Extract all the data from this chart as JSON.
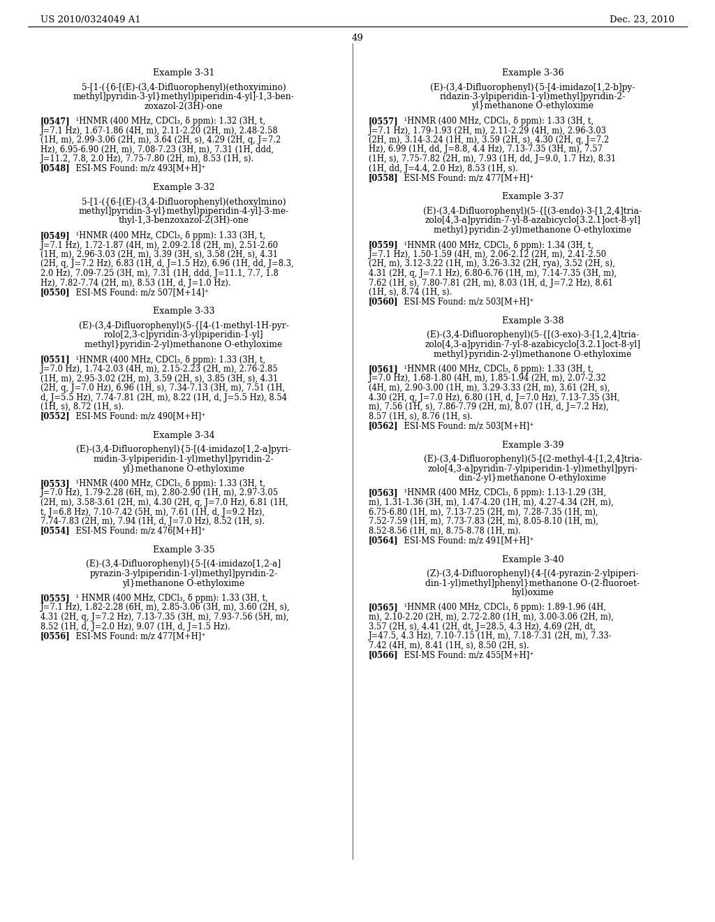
{
  "page_header_left": "US 2010/0324049 A1",
  "page_header_right": "Dec. 23, 2010",
  "page_number": "49",
  "background_color": "#ffffff",
  "text_color": "#000000",
  "left_col": [
    {
      "type": "spacer",
      "size": 30
    },
    {
      "type": "header",
      "text": "Example 3-31"
    },
    {
      "type": "spacer",
      "size": 6
    },
    {
      "type": "ctitle",
      "lines": [
        "5-[1-({6-[(E)-(3,4-Difluorophenyl)(ethoxyimino)",
        "methyl]pyridin-3-yl}methyl)piperidin-4-yl]-1,3-ben-",
        "zoxazol-2(3H)-one"
      ]
    },
    {
      "type": "spacer",
      "size": 8
    },
    {
      "type": "body",
      "tag": "[0547]",
      "lines": [
        "¹HNMR (400 MHz, CDCl₃, δ ppm): 1.32 (3H, t,",
        "J=7.1 Hz), 1.67-1.86 (4H, m), 2.11-2.20 (2H, m), 2.48-2.58",
        "(1H, m), 2.99-3.06 (2H, m), 3.64 (2H, s), 4.29 (2H, q, J=7.2",
        "Hz), 6.95-6.90 (2H, m), 7.08-7.23 (3H, m), 7.31 (1H, ddd,",
        "J=11.2, 7.8, 2.0 Hz), 7.75-7.80 (2H, m), 8.53 (1H, s)."
      ]
    },
    {
      "type": "esi",
      "tag": "[0548]",
      "text": "ESI-MS Found: m/z 493[M+H]⁺"
    },
    {
      "type": "spacer",
      "size": 14
    },
    {
      "type": "header",
      "text": "Example 3-32"
    },
    {
      "type": "spacer",
      "size": 6
    },
    {
      "type": "ctitle",
      "lines": [
        "5-[1-({6-[(E)-(3,4-Difluorophenyl)(ethoxylmino)",
        "methyl]pyridin-3-yl}methyl)piperidin-4-yl]-3-me-",
        "thyl-1,3-benzoxazol-2(3H)-one"
      ]
    },
    {
      "type": "spacer",
      "size": 8
    },
    {
      "type": "body",
      "tag": "[0549]",
      "lines": [
        "¹HNMR (400 MHz, CDCl₃, δ ppm): 1.33 (3H, t,",
        "J=7.1 Hz), 1.72-1.87 (4H, m), 2.09-2.18 (2H, m), 2.51-2.60",
        "(1H, m), 2.96-3.03 (2H, m), 3.39 (3H, s), 3.58 (2H, s), 4.31",
        "(2H, q, J=7.2 Hz), 6.83 (1H, d, J=1.5 Hz), 6.96 (1H, dd, J=8.3,",
        "2.0 Hz), 7.09-7.25 (3H, m), 7.31 (1H, ddd, J=11.1, 7.7, 1.8",
        "Hz), 7.82-7.74 (2H, m), 8.53 (1H, d, J=1.0 Hz)."
      ]
    },
    {
      "type": "esi",
      "tag": "[0550]",
      "text": "ESI-MS Found: m/z 507[M+14]⁺"
    },
    {
      "type": "spacer",
      "size": 14
    },
    {
      "type": "header",
      "text": "Example 3-33"
    },
    {
      "type": "spacer",
      "size": 6
    },
    {
      "type": "ctitle",
      "lines": [
        "(E)-(3,4-Difluorophenyl)(5-{[4-(1-methyl-1H-pyr-",
        "rolo[2,3-c]pyridin-3-yl)piperidin-1-yl]",
        "methyl}pyridin-2-yl)methanone O-ethyloxime"
      ]
    },
    {
      "type": "spacer",
      "size": 8
    },
    {
      "type": "body",
      "tag": "[0551]",
      "lines": [
        "¹HNMR (400 MHz, CDCl₃, δ ppm): 1.33 (3H, t,",
        "J=7.0 Hz), 1.74-2.03 (4H, m), 2.15-2.23 (2H, m), 2.76-2.85",
        "(1H, m), 2.95-3.02 (2H, m), 3.59 (2H, s), 3.85 (3H, s), 4.31",
        "(2H, q, J=7.0 Hz), 6.96 (1H, s), 7.34-7.13 (3H, m), 7.51 (1H,",
        "d, J=5.5 Hz), 7.74-7.81 (2H, m), 8.22 (1H, d, J=5.5 Hz), 8.54",
        "(1H, s), 8.72 (1H, s)."
      ]
    },
    {
      "type": "esi",
      "tag": "[0552]",
      "text": "ESI-MS Found: m/z 490[M+H]⁺"
    },
    {
      "type": "spacer",
      "size": 14
    },
    {
      "type": "header",
      "text": "Example 3-34"
    },
    {
      "type": "spacer",
      "size": 6
    },
    {
      "type": "ctitle",
      "lines": [
        "(E)-(3,4-Difluorophenyl){5-[(4-imidazo[1,2-a]pyri-",
        "midin-3-ylpiperidin-1-yl)methyl]pyridin-2-",
        "yl}methanone O-ethyloxime"
      ]
    },
    {
      "type": "spacer",
      "size": 8
    },
    {
      "type": "body",
      "tag": "[0553]",
      "lines": [
        "¹HNMR (400 MHz, CDCl₃, δ ppm): 1.33 (3H, t,",
        "J=7.0 Hz), 1.79-2.28 (6H, m), 2.80-2.90 (1H, m), 2.97-3.05",
        "(2H, m), 3.58-3.61 (2H, m), 4.30 (2H, q, J=7.0 Hz), 6.81 (1H,",
        "t, J=6.8 Hz), 7.10-7.42 (5H, m), 7.61 (1H, d, J=9.2 Hz),",
        "7.74-7.83 (2H, m), 7.94 (1H, d, J=7.0 Hz), 8.52 (1H, s)."
      ]
    },
    {
      "type": "esi",
      "tag": "[0554]",
      "text": "ESI-MS Found: m/z 476[M+H]⁺"
    },
    {
      "type": "spacer",
      "size": 14
    },
    {
      "type": "header",
      "text": "Example 3-35"
    },
    {
      "type": "spacer",
      "size": 6
    },
    {
      "type": "ctitle",
      "lines": [
        "(E)-(3,4-Difluorophenyl){5-[(4-imidazo[1,2-a]",
        "pyrazin-3-ylpiperidin-1-yl)methyl]pyridin-2-",
        "yl}methanone O-ethyloxime"
      ]
    },
    {
      "type": "spacer",
      "size": 8
    },
    {
      "type": "body",
      "tag": "[0555]",
      "lines": [
        "¹ HNMR (400 MHz, CDCl₃, δ ppm): 1.33 (3H, t,",
        "J=7.1 Hz), 1.82-2.28 (6H, m), 2.85-3.06 (3H, m), 3.60 (2H, s),",
        "4.31 (2H, q, J=7.2 Hz), 7.13-7.35 (3H, m), 7.93-7.56 (5H, m),",
        "8.52 (1H, d, J=2.0 Hz), 9.07 (1H, d, J=1.5 Hz)."
      ]
    },
    {
      "type": "esi",
      "tag": "[0556]",
      "text": "ESI-MS Found: m/z 477[M+H]⁺"
    }
  ],
  "right_col": [
    {
      "type": "spacer",
      "size": 30
    },
    {
      "type": "header",
      "text": "Example 3-36"
    },
    {
      "type": "spacer",
      "size": 6
    },
    {
      "type": "ctitle",
      "lines": [
        "(E)-(3,4-Difluorophenyl){5-[4-imidazo[1,2-b]py-",
        "ridazin-3-ylpiperidin-1-yl)methyl]pyridin-2-",
        "yl}methanone O-ethyloxime"
      ]
    },
    {
      "type": "spacer",
      "size": 8
    },
    {
      "type": "body",
      "tag": "[0557]",
      "lines": [
        "¹HNMR (400 MHz, CDCl₃, δ ppm): 1.33 (3H, t,",
        "J=7.1 Hz), 1.79-1.93 (2H, m), 2.11-2.29 (4H, m), 2.96-3.03",
        "(2H, m), 3.14-3.24 (1H, m), 3.59 (2H, s), 4.30 (2H, q, J=7.2",
        "Hz), 6.99 (1H, dd, J=8.8, 4.4 Hz), 7.13-7.35 (3H, m), 7.57",
        "(1H, s), 7.75-7.82 (2H, m), 7.93 (1H, dd, J=9.0, 1.7 Hz), 8.31",
        "(1H, dd, J=4.4, 2.0 Hz), 8.53 (1H, s)."
      ]
    },
    {
      "type": "esi",
      "tag": "[0558]",
      "text": "ESI-MS Found: m/z 477[M+H]⁺"
    },
    {
      "type": "spacer",
      "size": 14
    },
    {
      "type": "header",
      "text": "Example 3-37"
    },
    {
      "type": "spacer",
      "size": 6
    },
    {
      "type": "ctitle",
      "lines": [
        "(E)-(3,4-Difluorophenyl)(5-{[(3-endo)-3-[1,2,4]tria-",
        "zolo[4,3-a]pyridin-7-yl-8-azabicyclo[3.2.1]oct-8-yl]",
        "methyl}pyridin-2-yl)methanone O-ethyloxime"
      ]
    },
    {
      "type": "spacer",
      "size": 8
    },
    {
      "type": "body",
      "tag": "[0559]",
      "lines": [
        "¹HNMR (400 MHz, CDCl₃, δ ppm): 1.34 (3H, t,",
        "J=7.1 Hz), 1.50-1.59 (4H, m), 2.06-2.12 (2H, m), 2.41-2.50",
        "(2H, m), 3.12-3.22 (1H, m), 3.26-3.32 (2H, rya), 3.52 (2H, s),",
        "4.31 (2H, q, J=7.1 Hz), 6.80-6.76 (1H, m), 7.14-7.35 (3H, m),",
        "7.62 (1H, s), 7.80-7.81 (2H, m), 8.03 (1H, d, J=7.2 Hz), 8.61",
        "(1H, s), 8.74 (1H, s)."
      ]
    },
    {
      "type": "esi",
      "tag": "[0560]",
      "text": "ESI-MS Found: m/z 503[M+H]⁺"
    },
    {
      "type": "spacer",
      "size": 14
    },
    {
      "type": "header",
      "text": "Example 3-38"
    },
    {
      "type": "spacer",
      "size": 6
    },
    {
      "type": "ctitle",
      "lines": [
        "(E)-(3,4-Difluorophenyl)(5-{[(3-exo)-3-[1,2,4]tria-",
        "zolo[4,3-a]pyridin-7-yl-8-azabicyclo[3.2.1]oct-8-yl]",
        "methyl}pyridin-2-yl)methanone O-ethyloxime"
      ]
    },
    {
      "type": "spacer",
      "size": 8
    },
    {
      "type": "body",
      "tag": "[0561]",
      "lines": [
        "¹HNMR (400 MHz, CDCl₃, δ ppm): 1.33 (3H, t,",
        "J=7.0 Hz), 1.68-1.80 (4H, m), 1.85-1.94 (2H, m), 2.07-2.32",
        "(4H, m), 2.90-3.00 (1H, m), 3.29-3.33 (2H, m), 3.61 (2H, s),",
        "4.30 (2H, q, J=7.0 Hz), 6.80 (1H, d, J=7.0 Hz), 7.13-7.35 (3H,",
        "m), 7.56 (1H, s), 7.86-7.79 (2H, m), 8.07 (1H, d, J=7.2 Hz),",
        "8.57 (1H, s), 8.76 (1H, s)."
      ]
    },
    {
      "type": "esi",
      "tag": "[0562]",
      "text": "ESI-MS Found: m/z 503[M+H]⁺"
    },
    {
      "type": "spacer",
      "size": 14
    },
    {
      "type": "header",
      "text": "Example 3-39"
    },
    {
      "type": "spacer",
      "size": 6
    },
    {
      "type": "ctitle",
      "lines": [
        "(E)-(3,4-Difluorophenyl)(5-[(2-methyl-4-[1,2,4]tria-",
        "zolo[4,3-a]pyridin-7-ylpiperidin-1-yl)methyl]pyri-",
        "din-2-yl}methanone O-ethyloxime"
      ]
    },
    {
      "type": "spacer",
      "size": 8
    },
    {
      "type": "body",
      "tag": "[0563]",
      "lines": [
        "¹HNMR (400 MHz, CDCl₃, δ ppm): 1.13-1.29 (3H,",
        "m), 1.31-1.36 (3H, m), 1.47-4.20 (1H, m), 4.27-4.34 (2H, m),",
        "6.75-6.80 (1H, m), 7.13-7.25 (2H, m), 7.28-7.35 (1H, m),",
        "7.52-7.59 (1H, m), 7.73-7.83 (2H, m), 8.05-8.10 (1H, m),",
        "8.52-8.56 (1H, m), 8.75-8.78 (1H, m)."
      ]
    },
    {
      "type": "esi",
      "tag": "[0564]",
      "text": "ESI-MS Found: m/z 491[M+H]⁺"
    },
    {
      "type": "spacer",
      "size": 14
    },
    {
      "type": "header",
      "text": "Example 3-40"
    },
    {
      "type": "spacer",
      "size": 6
    },
    {
      "type": "ctitle",
      "lines": [
        "(Z)-(3,4-Difluorophenyl){4-[(4-pyrazin-2-ylpiperi-",
        "din-1-yl)methyl]phenyl}methanone O-(2-fluoroet-",
        "hyl)oxime"
      ]
    },
    {
      "type": "spacer",
      "size": 8
    },
    {
      "type": "body",
      "tag": "[0565]",
      "lines": [
        "¹HNMR (400 MHz, CDCl₃, δ ppm): 1.89-1.96 (4H,",
        "m), 2.10-2.20 (2H, m), 2.72-2.80 (1H, m), 3.00-3.06 (2H, m),",
        "3.57 (2H, s), 4.41 (2H, dt, J=28.5, 4.3 Hz), 4.69 (2H, dt,",
        "J=47.5, 4.3 Hz), 7.10-7.15 (1H, m), 7.18-7.31 (2H, m), 7.33-",
        "7.42 (4H, m), 8.41 (1H, s), 8.50 (2H, s)."
      ]
    },
    {
      "type": "esi",
      "tag": "[0566]",
      "text": "ESI-MS Found: m/z 455[M+H]⁺"
    }
  ]
}
